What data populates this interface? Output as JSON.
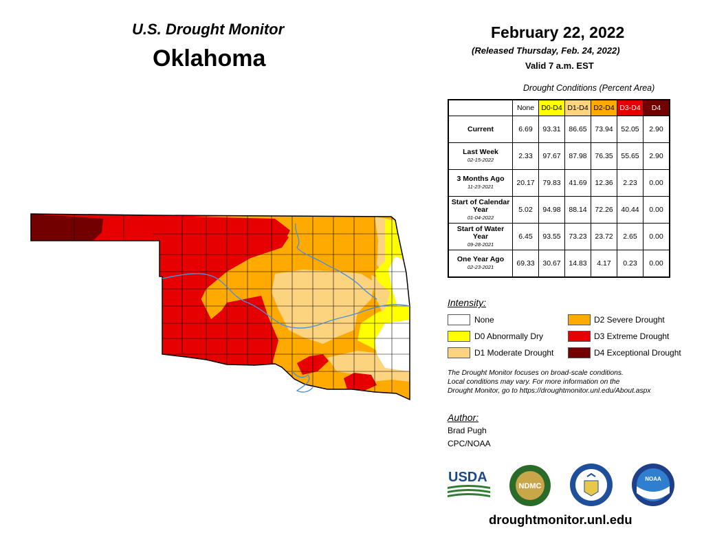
{
  "header": {
    "brand": "U.S. Drought Monitor",
    "state": "Oklahoma",
    "date": "February 22, 2022",
    "release": "(Released Thursday, Feb. 24, 2022)",
    "valid": "Valid 7 a.m. EST"
  },
  "table": {
    "caption": "Drought Conditions (Percent Area)",
    "columns": [
      {
        "label": "None",
        "color": "#ffffff"
      },
      {
        "label": "D0-D4",
        "color": "#ffff00"
      },
      {
        "label": "D1-D4",
        "color": "#fcd37f"
      },
      {
        "label": "D2-D4",
        "color": "#ffaa00"
      },
      {
        "label": "D3-D4",
        "color": "#e60000"
      },
      {
        "label": "D4",
        "color": "#730000"
      }
    ],
    "rows": [
      {
        "label": "Current",
        "date": "",
        "values": [
          "6.69",
          "93.31",
          "86.65",
          "73.94",
          "52.05",
          "2.90"
        ]
      },
      {
        "label": "Last Week",
        "date": "02-15-2022",
        "values": [
          "2.33",
          "97.67",
          "87.98",
          "76.35",
          "55.65",
          "2.90"
        ]
      },
      {
        "label": "3 Months Ago",
        "date": "11-23-2021",
        "values": [
          "20.17",
          "79.83",
          "41.69",
          "12.36",
          "2.23",
          "0.00"
        ]
      },
      {
        "label": "Start of Calendar Year",
        "date": "01-04-2022",
        "values": [
          "5.02",
          "94.98",
          "88.14",
          "72.26",
          "40.44",
          "0.00"
        ]
      },
      {
        "label": "Start of Water Year",
        "date": "09-28-2021",
        "values": [
          "6.45",
          "93.55",
          "73.23",
          "23.72",
          "2.65",
          "0.00"
        ]
      },
      {
        "label": "One Year Ago",
        "date": "02-23-2021",
        "values": [
          "69.33",
          "30.67",
          "14.83",
          "4.17",
          "0.23",
          "0.00"
        ]
      }
    ]
  },
  "intensity": {
    "title": "Intensity:",
    "items": [
      {
        "label": "None",
        "color": "#ffffff"
      },
      {
        "label": "D0 Abnormally Dry",
        "color": "#ffff00"
      },
      {
        "label": "D1 Moderate Drought",
        "color": "#fcd37f"
      },
      {
        "label": "D2 Severe Drought",
        "color": "#ffaa00"
      },
      {
        "label": "D3 Extreme Drought",
        "color": "#e60000"
      },
      {
        "label": "D4 Exceptional Drought",
        "color": "#730000"
      }
    ]
  },
  "note": {
    "line1": "The Drought Monitor focuses on broad-scale conditions.",
    "line2": "Local conditions may vary. For more information on the",
    "line3": "Drought Monitor, go to https://droughtmonitor.unl.edu/About.aspx"
  },
  "author": {
    "title": "Author:",
    "name": "Brad Pugh",
    "org": "CPC/NOAA"
  },
  "logos": {
    "usda": "USDA",
    "ndmc": "NDMC",
    "noaa": "NOAA"
  },
  "url": "droughtmonitor.unl.edu",
  "map": {
    "river_color": "#4a90d9",
    "county_line_color": "#000000"
  }
}
